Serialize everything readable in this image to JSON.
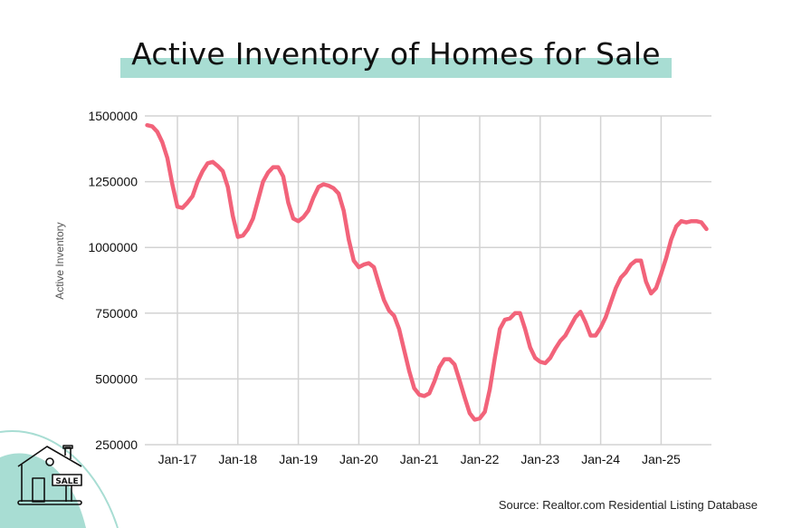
{
  "title": "Active Inventory of Homes for Sale",
  "source": "Source: Realtor.com Residential Listing Database",
  "icon": {
    "name": "house-for-sale-icon",
    "sign_text": "SALE"
  },
  "colors": {
    "line": "#f2637a",
    "highlight": "#a8ddd3",
    "grid": "#d3d3d3",
    "decor": "#a8ddd3"
  },
  "chart_data": {
    "type": "line",
    "title": "Active Inventory of Homes for Sale",
    "xlabel": "",
    "ylabel": "Active Inventory",
    "frequency": "monthly",
    "x_start": "2016-07",
    "x_end": "2025-10",
    "x_ticks": [
      "Jan-17",
      "Jan-18",
      "Jan-19",
      "Jan-20",
      "Jan-21",
      "Jan-22",
      "Jan-23",
      "Jan-24",
      "Jan-25"
    ],
    "y_ticks": [
      "1500000",
      "1250000",
      "1000000",
      "750000",
      "500000",
      "250000"
    ],
    "ylim": [
      250000,
      1500000
    ],
    "grid": true,
    "series": [
      {
        "name": "Active Inventory",
        "values": [
          1465000,
          1460000,
          1440000,
          1400000,
          1340000,
          1240000,
          1155000,
          1150000,
          1170000,
          1195000,
          1250000,
          1290000,
          1320000,
          1325000,
          1310000,
          1290000,
          1230000,
          1120000,
          1040000,
          1045000,
          1070000,
          1110000,
          1180000,
          1250000,
          1285000,
          1305000,
          1305000,
          1270000,
          1170000,
          1110000,
          1100000,
          1115000,
          1140000,
          1190000,
          1230000,
          1240000,
          1235000,
          1225000,
          1205000,
          1140000,
          1030000,
          950000,
          925000,
          935000,
          940000,
          925000,
          860000,
          800000,
          760000,
          740000,
          690000,
          610000,
          530000,
          465000,
          440000,
          435000,
          445000,
          490000,
          545000,
          575000,
          575000,
          555000,
          495000,
          430000,
          370000,
          345000,
          350000,
          375000,
          460000,
          580000,
          690000,
          725000,
          730000,
          750000,
          750000,
          690000,
          620000,
          580000,
          565000,
          560000,
          580000,
          615000,
          645000,
          665000,
          700000,
          735000,
          755000,
          715000,
          665000,
          665000,
          695000,
          735000,
          790000,
          845000,
          885000,
          905000,
          935000,
          950000,
          950000,
          870000,
          825000,
          845000,
          900000,
          960000,
          1030000,
          1080000,
          1100000,
          1095000,
          1100000,
          1100000,
          1095000,
          1070000
        ]
      }
    ]
  }
}
